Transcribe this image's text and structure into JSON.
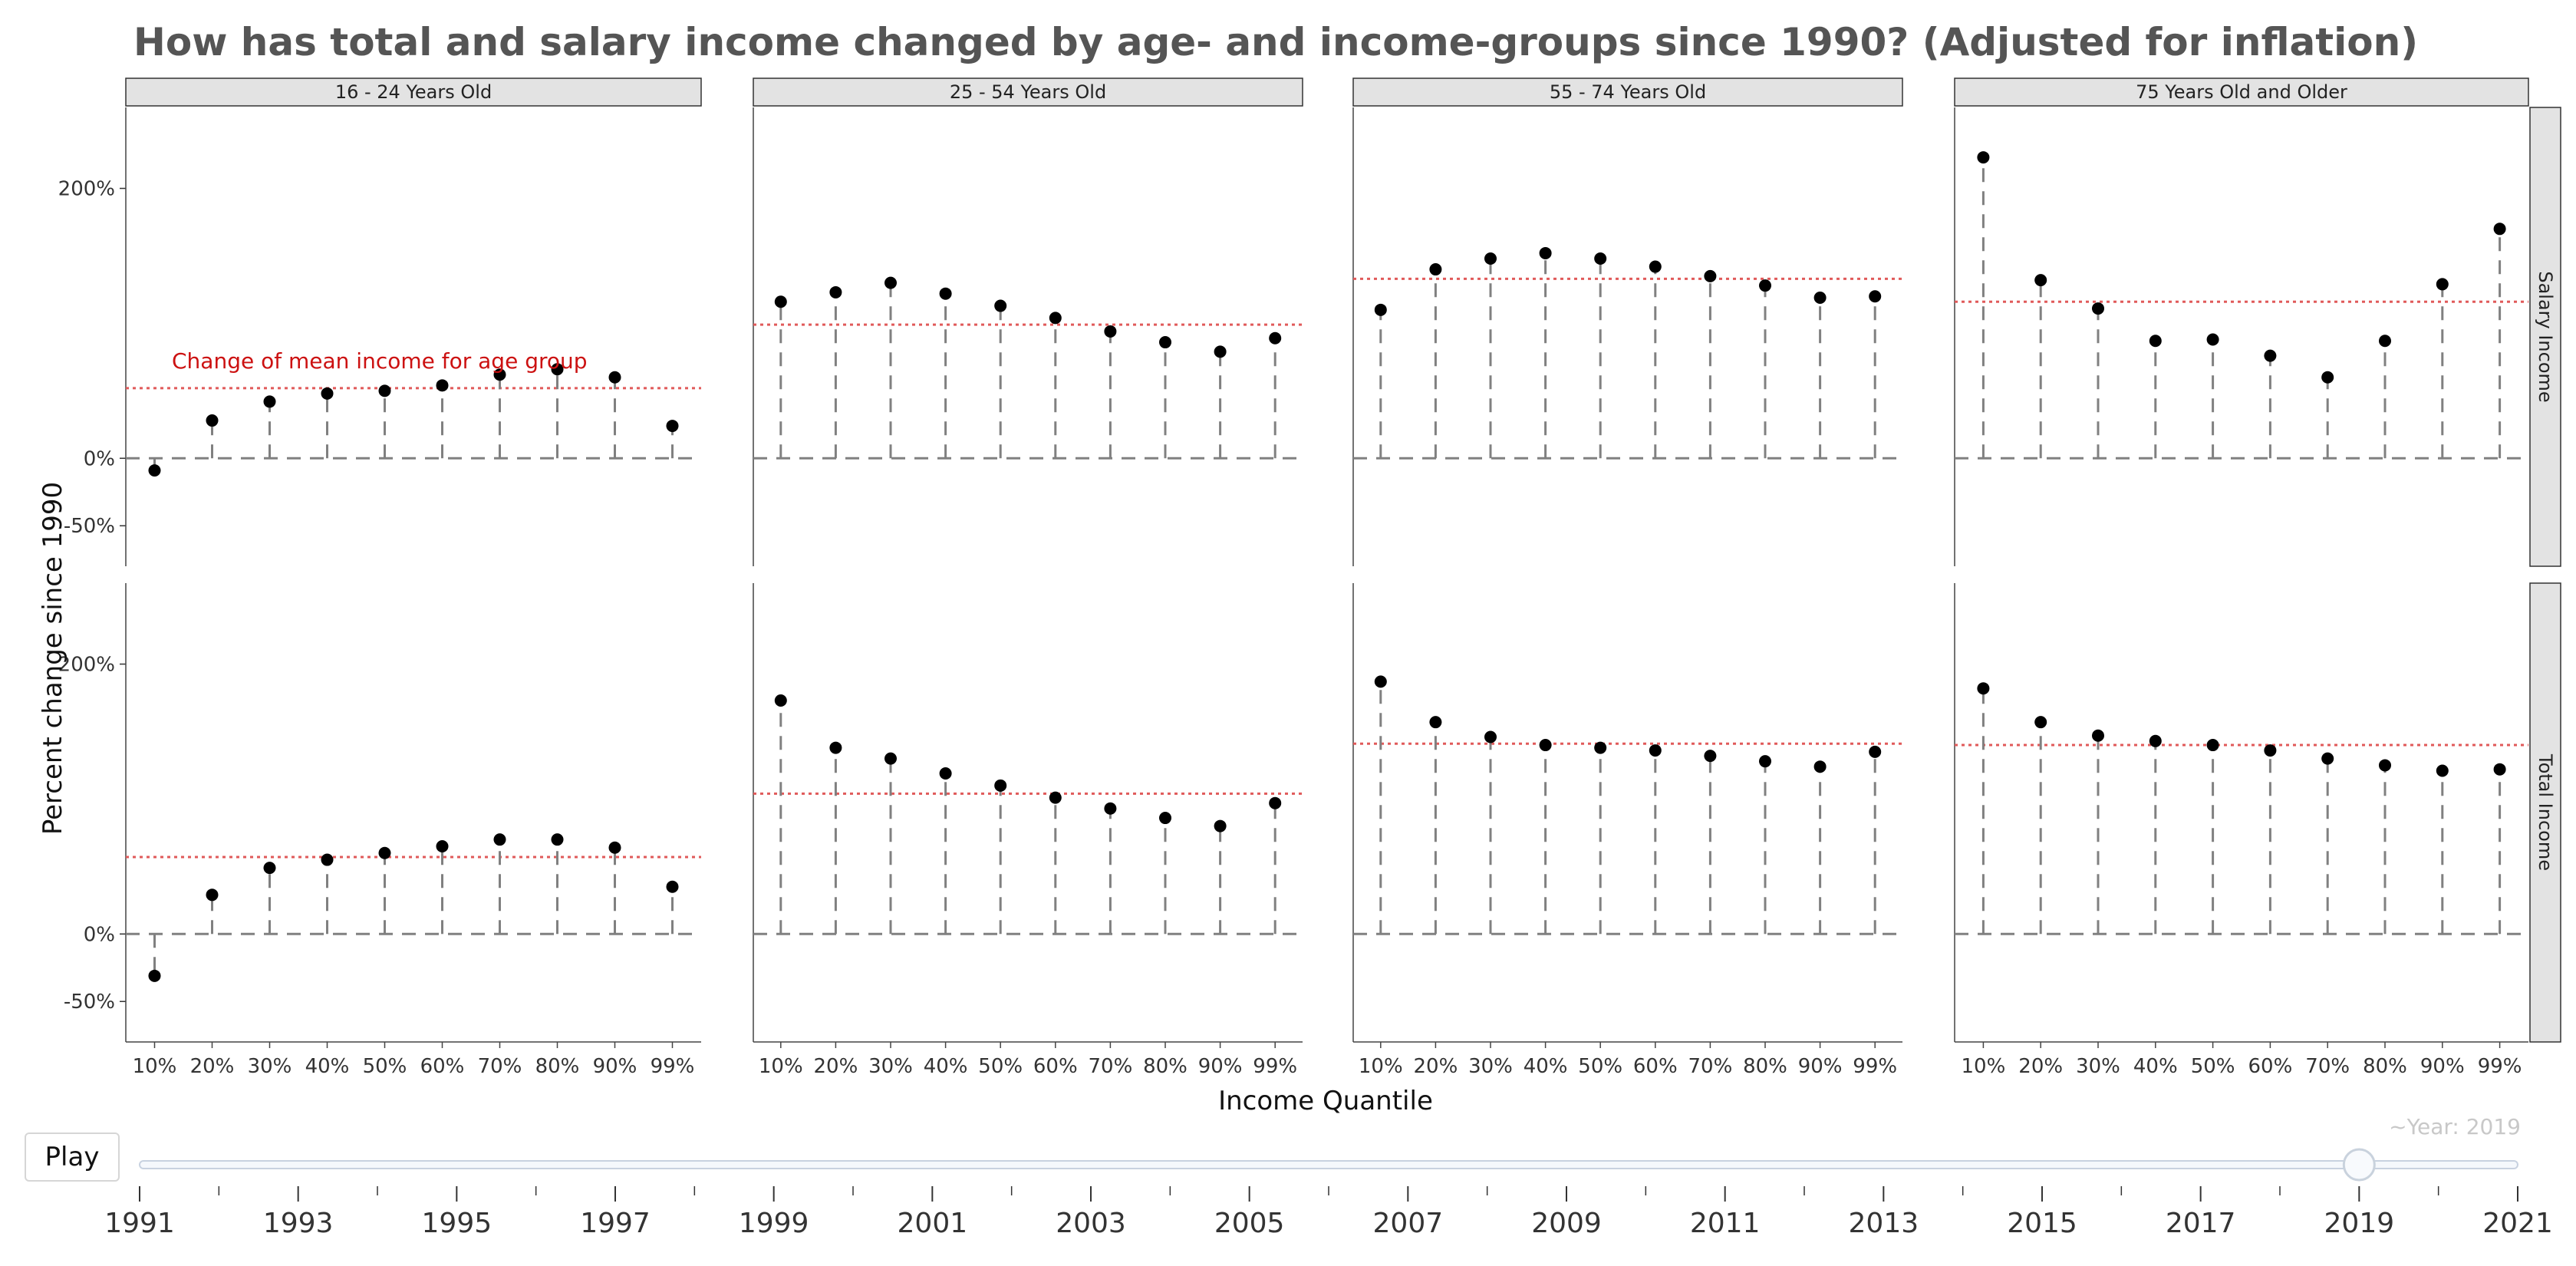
{
  "title": "How has total and salary income changed by age- and income-groups since 1990? (Adjusted for inflation)",
  "colors": {
    "mean_line": "#e05a5a",
    "annotation": "#cc1111",
    "point": "#000000",
    "stem": "#808080",
    "strip": "#e3e3e3"
  },
  "chart_data": {
    "type": "lollipop",
    "title": "How has total and salary income changed by age- and income-groups since 1990? (Adjusted for inflation)",
    "xlabel": "Income Quantile",
    "ylabel": "Percent change since 1990",
    "ylim": [
      -80,
      260
    ],
    "yticks": [
      {
        "value": -50,
        "label": "-50%"
      },
      {
        "value": 0,
        "label": "0%"
      },
      {
        "value": 200,
        "label": "200%"
      }
    ],
    "categories": [
      "10%",
      "20%",
      "30%",
      "40%",
      "50%",
      "60%",
      "70%",
      "80%",
      "90%",
      "99%"
    ],
    "columns": [
      "16 - 24 Years Old",
      "25 - 54 Years Old",
      "55 - 74 Years Old",
      "75 Years Old and Older"
    ],
    "rows": [
      "Salary Income",
      "Total Income"
    ],
    "annotation": "Change of mean income for age group",
    "panels": [
      {
        "row": "Salary Income",
        "column": "16 - 24 Years Old",
        "mean": 52,
        "values": [
          -9,
          28,
          42,
          48,
          50,
          54,
          62,
          66,
          60,
          24
        ]
      },
      {
        "row": "Salary Income",
        "column": "25 - 54 Years Old",
        "mean": 99,
        "values": [
          116,
          123,
          130,
          122,
          113,
          104,
          94,
          86,
          79,
          89
        ]
      },
      {
        "row": "Salary Income",
        "column": "55 - 74 Years Old",
        "mean": 133,
        "values": [
          110,
          140,
          148,
          152,
          148,
          142,
          135,
          128,
          119,
          120
        ]
      },
      {
        "row": "Salary Income",
        "column": "75 Years Old and Older",
        "mean": 116,
        "values": [
          223,
          132,
          111,
          87,
          88,
          76,
          60,
          87,
          129,
          170
        ]
      },
      {
        "row": "Total Income",
        "column": "16 - 24 Years Old",
        "mean": 57,
        "values": [
          -31,
          29,
          49,
          55,
          60,
          65,
          70,
          70,
          64,
          35
        ]
      },
      {
        "row": "Total Income",
        "column": "25 - 54 Years Old",
        "mean": 104,
        "values": [
          173,
          138,
          130,
          119,
          110,
          101,
          93,
          86,
          80,
          97
        ]
      },
      {
        "row": "Total Income",
        "column": "55 - 74 Years Old",
        "mean": 141,
        "values": [
          187,
          157,
          146,
          140,
          138,
          136,
          132,
          128,
          124,
          135
        ]
      },
      {
        "row": "Total Income",
        "column": "75 Years Old and Older",
        "mean": 140,
        "values": [
          182,
          157,
          147,
          143,
          140,
          136,
          130,
          125,
          121,
          122
        ]
      }
    ]
  },
  "slider": {
    "play_label": "Play",
    "year_readout": "~Year: 2019",
    "min_year": 1991,
    "max_year": 2021,
    "current_year": 2019,
    "labels": [
      "1991",
      "1993",
      "1995",
      "1997",
      "1999",
      "2001",
      "2003",
      "2005",
      "2007",
      "2009",
      "2011",
      "2013",
      "2015",
      "2017",
      "2019",
      "2021"
    ]
  }
}
